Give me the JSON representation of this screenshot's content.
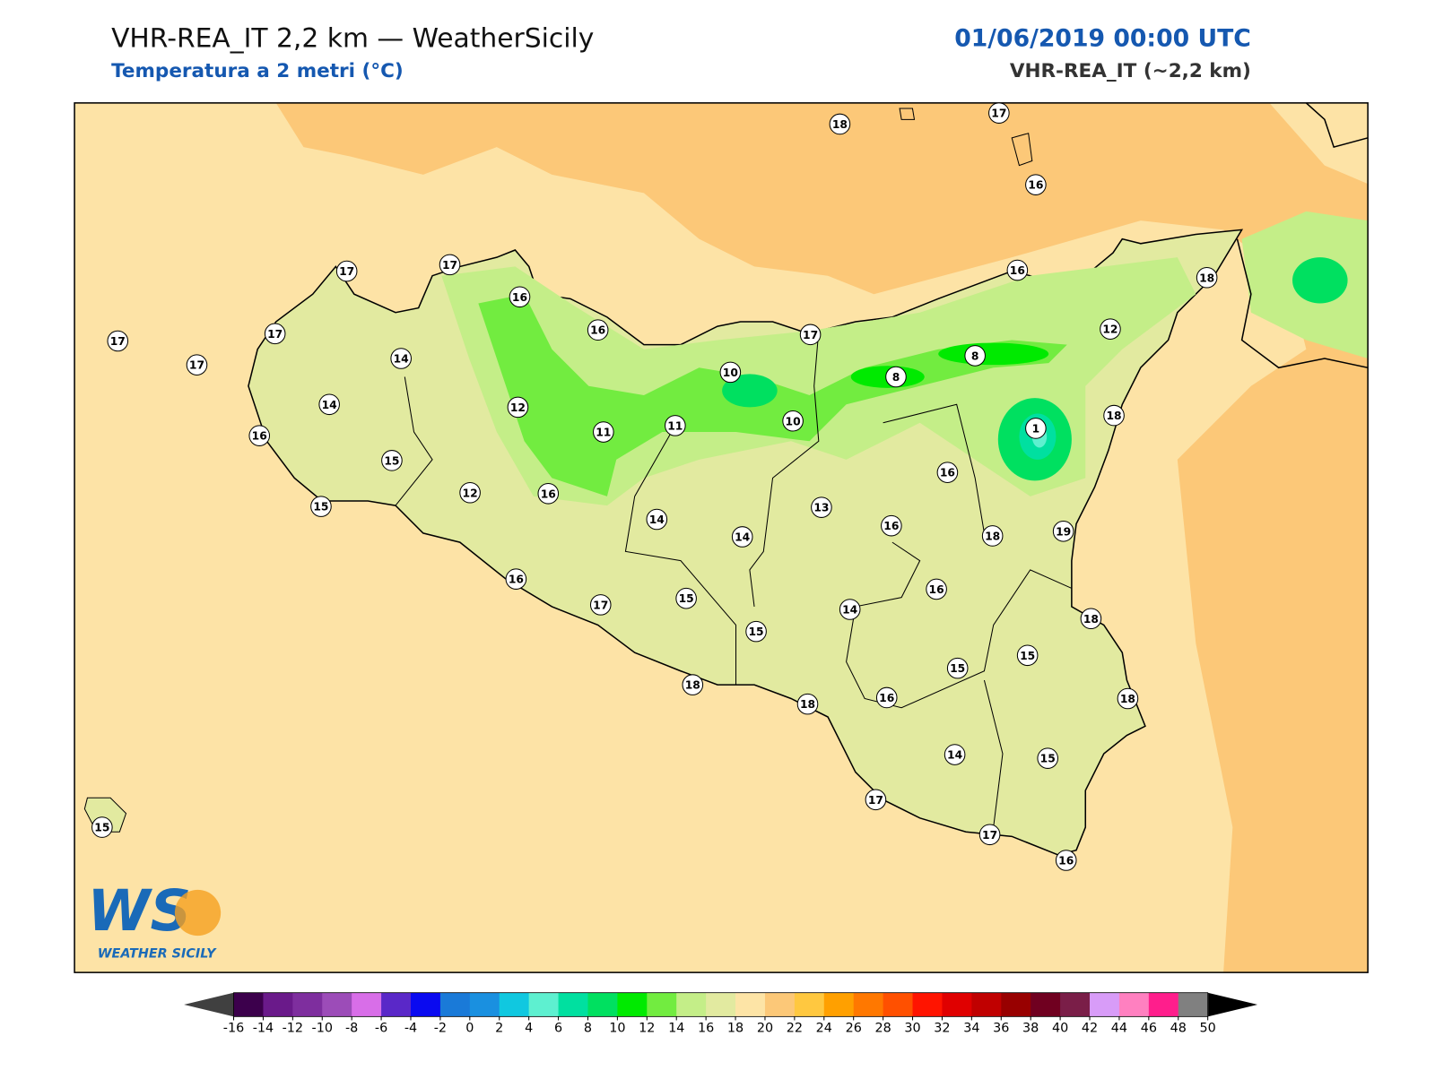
{
  "header": {
    "title": "VHR-REA_IT 2,2 km — WeatherSicily",
    "subtitle": "Temperatura a 2 metri (°C)",
    "date": "01/06/2019 00:00 UTC",
    "model": "VHR-REA_IT (~2,2 km)"
  },
  "logo": {
    "mark": "WS",
    "name": "WEATHER SICILY"
  },
  "stations": [
    18,
    17,
    16,
    17,
    17,
    16,
    16,
    17,
    17,
    17,
    14,
    14,
    16,
    12,
    15,
    12,
    16,
    11,
    11,
    10,
    10,
    17,
    8,
    8,
    16,
    18,
    12,
    1,
    18,
    16,
    15,
    14,
    14,
    13,
    16,
    18,
    19,
    16,
    17,
    15,
    15,
    14,
    16,
    18,
    15,
    15,
    16,
    18,
    18,
    18,
    14,
    15,
    17,
    17,
    16,
    15
  ],
  "colorbar": {
    "ticks": [
      -16,
      -14,
      -12,
      -10,
      -8,
      -6,
      -4,
      -2,
      0,
      2,
      4,
      6,
      8,
      10,
      12,
      14,
      16,
      18,
      20,
      22,
      24,
      26,
      28,
      30,
      32,
      34,
      36,
      38,
      40,
      42,
      44,
      46,
      48,
      50
    ],
    "colors": [
      "#3c004c",
      "#6a1a8a",
      "#7e2e9e",
      "#9c4cb8",
      "#d86ee8",
      "#5a28c8",
      "#0a0af0",
      "#1a7ad8",
      "#1a90e0",
      "#10c8e0",
      "#5ef0d0",
      "#00e0a0",
      "#00e060",
      "#00ea00",
      "#72ec40",
      "#c4ee88",
      "#e2eaa0",
      "#fde4a6",
      "#fcc878",
      "#ffc840",
      "#ffa000",
      "#ff7800",
      "#ff5000",
      "#ff1400",
      "#e00000",
      "#c00000",
      "#980000",
      "#700020",
      "#7a1e48",
      "#d89cf8",
      "#ff80c0",
      "#ff1e8c",
      "#808080",
      "#3a3a3a"
    ],
    "under": "#404040",
    "over": "#000000"
  }
}
